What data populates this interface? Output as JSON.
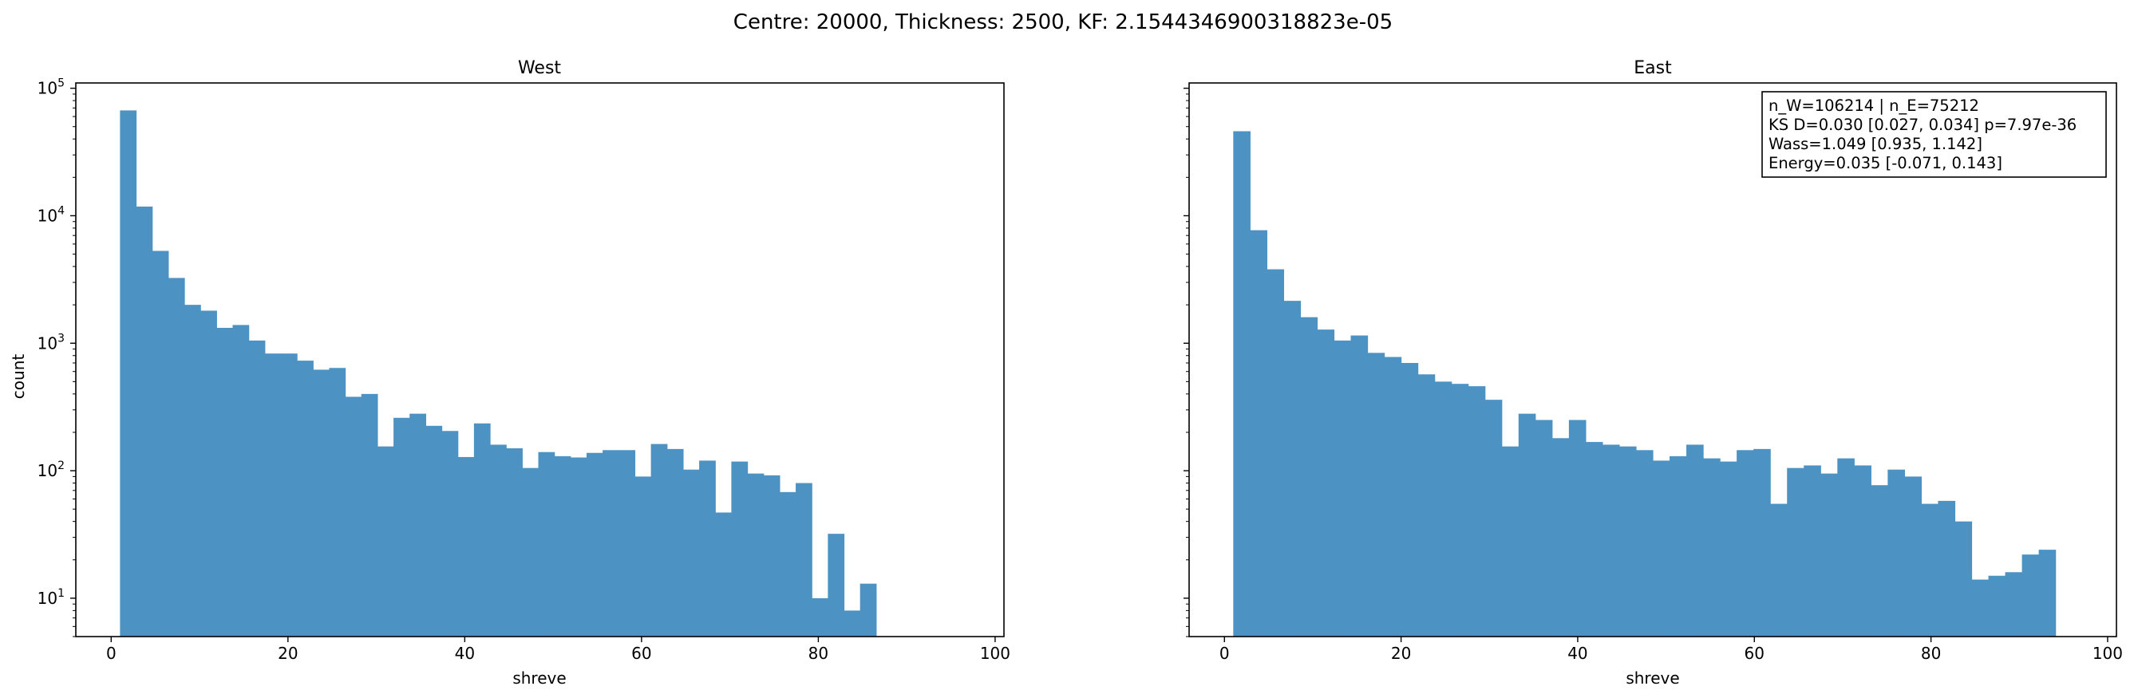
{
  "figure": {
    "suptitle": "Centre: 20000, Thickness: 2500, KF: 2.1544346900318823e-05"
  },
  "colors": {
    "bar": "#4c93c4",
    "axis": "#000000",
    "background": "#ffffff"
  },
  "chart_data": [
    {
      "type": "bar",
      "title": "West",
      "xlabel": "shreve",
      "ylabel": "count",
      "yscale": "log",
      "xlim": [
        -4,
        101
      ],
      "ylim": [
        5,
        110000
      ],
      "xticks": [
        0,
        20,
        40,
        60,
        80,
        100
      ],
      "yticks": [
        {
          "value": 10,
          "base": "10",
          "exp": "1"
        },
        {
          "value": 100,
          "base": "10",
          "exp": "2"
        },
        {
          "value": 1000,
          "base": "10",
          "exp": "3"
        },
        {
          "value": 10000,
          "base": "10",
          "exp": "4"
        },
        {
          "value": 100000,
          "base": "10",
          "exp": "5"
        }
      ],
      "grid": false,
      "bin_start": 1,
      "bin_width": 1.82,
      "values": [
        67000,
        11800,
        5300,
        3250,
        2000,
        1800,
        1320,
        1390,
        1050,
        830,
        830,
        730,
        620,
        640,
        380,
        400,
        155,
        260,
        280,
        225,
        205,
        128,
        235,
        160,
        150,
        105,
        140,
        130,
        127,
        138,
        145,
        145,
        90,
        162,
        148,
        102,
        120,
        47,
        118,
        95,
        92,
        68,
        80,
        10,
        32,
        8,
        13
      ]
    },
    {
      "type": "bar",
      "title": "East",
      "xlabel": "shreve",
      "ylabel": "",
      "yscale": "log",
      "xlim": [
        -4,
        101
      ],
      "ylim": [
        5,
        110000
      ],
      "xticks": [
        0,
        20,
        40,
        60,
        80,
        100
      ],
      "grid": false,
      "bin_start": 1,
      "bin_width": 1.9,
      "values": [
        46000,
        7700,
        3800,
        2150,
        1600,
        1280,
        1050,
        1150,
        840,
        780,
        700,
        570,
        500,
        480,
        460,
        360,
        155,
        280,
        250,
        180,
        250,
        168,
        160,
        155,
        145,
        120,
        130,
        160,
        125,
        118,
        145,
        148,
        55,
        105,
        110,
        95,
        125,
        110,
        77,
        102,
        90,
        55,
        58,
        40,
        14,
        15,
        16,
        22,
        24
      ],
      "legend_position": "top-right",
      "annotation": [
        "n_W=106214 | n_E=75212",
        "KS D=0.030 [0.027, 0.034]  p=7.97e-36",
        "Wass=1.049 [0.935, 1.142]",
        "Energy=0.035 [-0.071, 0.143]"
      ]
    }
  ]
}
